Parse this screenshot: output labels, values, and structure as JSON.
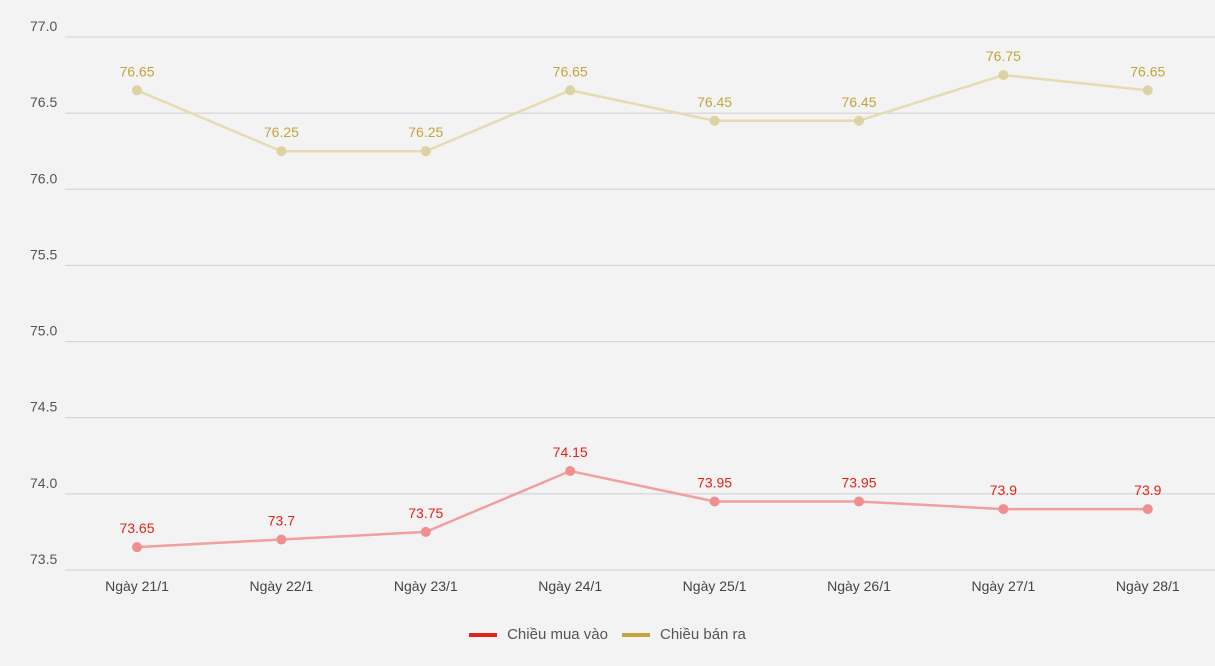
{
  "chart_data": {
    "type": "line",
    "categories": [
      "Ngày 21/1",
      "Ngày 22/1",
      "Ngày 23/1",
      "Ngày 24/1",
      "Ngày 25/1",
      "Ngày 26/1",
      "Ngày 27/1",
      "Ngày 28/1"
    ],
    "y_ticks": [
      "73.5",
      "74.0",
      "74.5",
      "75.0",
      "75.5",
      "76.0",
      "76.5",
      "77.0"
    ],
    "ylim": [
      73.5,
      77.0
    ],
    "grid": true,
    "legend_position": "bottom",
    "series": [
      {
        "name": "Chiều mua vào",
        "values": [
          73.65,
          73.7,
          73.75,
          74.15,
          73.95,
          73.95,
          73.9,
          73.9
        ],
        "labels": [
          "73.65",
          "73.7",
          "73.75",
          "74.15",
          "73.95",
          "73.95",
          "73.9",
          "73.9"
        ],
        "line_color": "#f0a0a0",
        "marker_color": "#ef8f8f",
        "label_color": "#e2231a",
        "legend_color": "#e2231a"
      },
      {
        "name": "Chiều bán ra",
        "values": [
          76.65,
          76.25,
          76.25,
          76.65,
          76.45,
          76.45,
          76.75,
          76.65
        ],
        "labels": [
          "76.65",
          "76.25",
          "76.25",
          "76.65",
          "76.45",
          "76.45",
          "76.75",
          "76.65"
        ],
        "line_color": "#e6dcb3",
        "marker_color": "#dcd2a3",
        "label_color": "#c3a43e",
        "legend_color": "#c3a43e"
      }
    ]
  }
}
